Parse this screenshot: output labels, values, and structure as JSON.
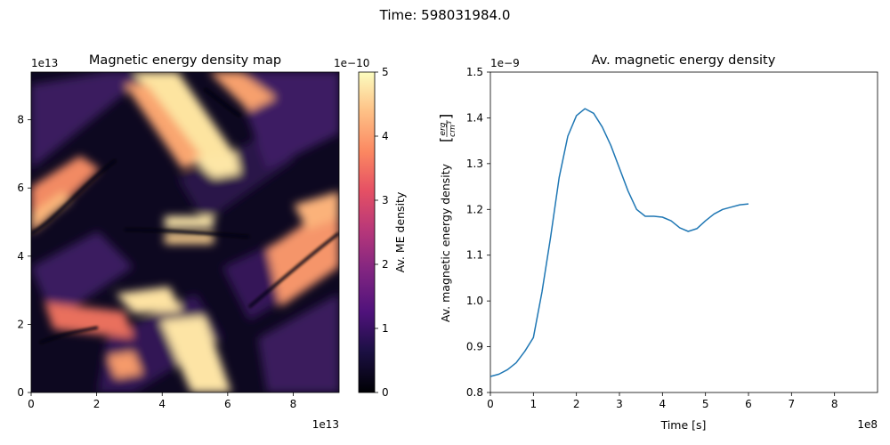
{
  "figure": {
    "suptitle": "Time: 598031984.0"
  },
  "chart_data": [
    {
      "type": "heatmap",
      "title": "Magnetic energy density map",
      "xlabel": "",
      "ylabel": "",
      "x_multiplier": "1e13",
      "y_multiplier": "1e13",
      "xlim": [
        0,
        9.4
      ],
      "ylim": [
        0,
        9.4
      ],
      "xticks": [
        "0",
        "2",
        "4",
        "6",
        "8"
      ],
      "yticks": [
        "0",
        "2",
        "4",
        "6",
        "8"
      ],
      "colormap": "magma",
      "grid": false,
      "colorbar": {
        "label": "Av. ME density",
        "multiplier": "1e−10",
        "range": [
          0,
          5
        ],
        "ticks": [
          "0",
          "1",
          "2",
          "3",
          "4",
          "5"
        ]
      }
    },
    {
      "type": "line",
      "title": "Av. magnetic energy density",
      "xlabel": "Time [s]",
      "ylabel": "Av. magnetic energy density",
      "ylabel_unit_numerator": "erg",
      "ylabel_unit_denominator": "cm",
      "ylabel_unit_exponent": "3",
      "x_multiplier": "1e8",
      "y_multiplier": "1e−9",
      "xlim": [
        0,
        9
      ],
      "ylim": [
        0.8,
        1.5
      ],
      "xticks": [
        "0",
        "1",
        "2",
        "3",
        "4",
        "5",
        "6",
        "7",
        "8"
      ],
      "yticks": [
        "0.8",
        "0.9",
        "1.0",
        "1.1",
        "1.2",
        "1.3",
        "1.4",
        "1.5"
      ],
      "grid": false,
      "legend": "none",
      "color": "#1f77b4",
      "x": [
        0,
        0.2,
        0.4,
        0.6,
        0.8,
        1.0,
        1.2,
        1.4,
        1.6,
        1.8,
        2.0,
        2.2,
        2.4,
        2.6,
        2.8,
        3.0,
        3.2,
        3.4,
        3.6,
        3.8,
        4.0,
        4.2,
        4.4,
        4.6,
        4.8,
        5.0,
        5.2,
        5.4,
        5.6,
        5.8,
        6.0
      ],
      "y": [
        0.835,
        0.84,
        0.85,
        0.865,
        0.89,
        0.92,
        1.02,
        1.14,
        1.27,
        1.36,
        1.405,
        1.42,
        1.41,
        1.38,
        1.34,
        1.29,
        1.24,
        1.2,
        1.185,
        1.185,
        1.183,
        1.175,
        1.16,
        1.152,
        1.158,
        1.175,
        1.19,
        1.2,
        1.205,
        1.21,
        1.212
      ]
    }
  ]
}
